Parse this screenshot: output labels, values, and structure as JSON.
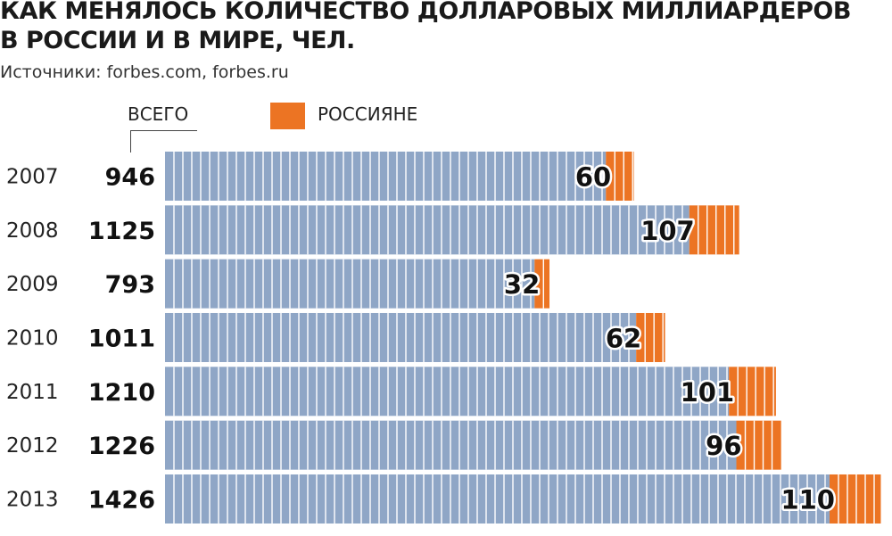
{
  "title": {
    "line1": "КАК МЕНЯЛОСЬ КОЛИЧЕСТВО ДОЛЛАРОВЫХ МИЛЛИАРДЕРОВ",
    "line2": "В РОССИИ И В МИРЕ, ЧЕЛ."
  },
  "source": "Источники: forbes.com, forbes.ru",
  "legend": {
    "total_label": "ВСЕГО",
    "russian_label": "РОССИЯНЕ"
  },
  "colors": {
    "total_bar": "#8fa6c6",
    "russian_bar": "#ec7423",
    "segment_line": "#ffffff"
  },
  "chart_data": {
    "type": "bar",
    "orientation": "horizontal",
    "stacked": true,
    "categories": [
      "2007",
      "2008",
      "2009",
      "2010",
      "2011",
      "2012",
      "2013"
    ],
    "series": [
      {
        "name": "ВСЕГО",
        "values": [
          946,
          1125,
          793,
          1011,
          1210,
          1226,
          1426
        ]
      },
      {
        "name": "РОССИЯНЕ",
        "values": [
          60,
          107,
          32,
          62,
          101,
          96,
          110
        ]
      }
    ],
    "title": "КАК МЕНЯЛОСЬ КОЛИЧЕСТВО ДОЛЛАРОВЫХ МИЛЛИАРДЕРОВ В РОССИИ И В МИРЕ, ЧЕЛ.",
    "legend_position": "top"
  }
}
